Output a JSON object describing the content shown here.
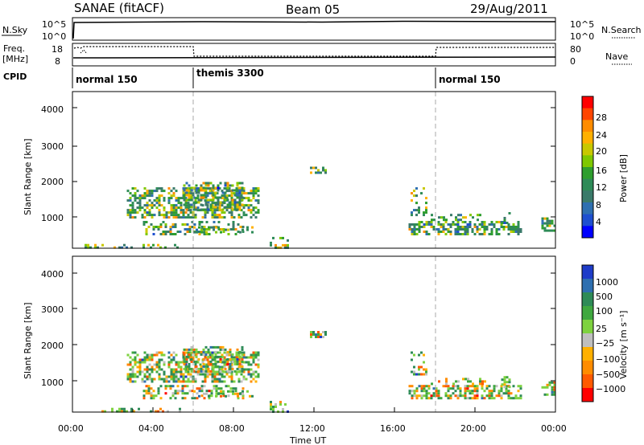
{
  "header": {
    "title": "SANAE (fitACF)",
    "beam": "Beam 05",
    "date": "29/Aug/2011"
  },
  "sky_panel": {
    "left_label": "N.Sky",
    "left_ticks": [
      "10^5",
      "10^0"
    ],
    "right_label": "N.Search",
    "right_ticks": [
      "10^5",
      "10^0"
    ]
  },
  "freq_panel": {
    "left_label_1": "Freq.",
    "left_label_2": "[MHz]",
    "left_ticks": [
      "18",
      "8"
    ],
    "right_label": "Nave",
    "right_ticks": [
      "80",
      "0"
    ]
  },
  "cpid_panel": {
    "label": "CPID",
    "modes": [
      "normal 150",
      "themis 3300",
      "normal 150"
    ]
  },
  "power_colorbar": {
    "label": "Power [dB]",
    "ticks": [
      "28",
      "24",
      "20",
      "16",
      "12",
      "8",
      "4"
    ],
    "colors": [
      "#ff0000",
      "#ff4500",
      "#ff8c00",
      "#ffb000",
      "#c8c800",
      "#7ec800",
      "#2e9e2e",
      "#2e8b57",
      "#3a7a6a",
      "#2e6fb0",
      "#1e4fd0",
      "#0000ff"
    ]
  },
  "velocity_colorbar": {
    "label": "Velocity  [m s⁻¹]",
    "ticks": [
      "1000",
      "500",
      "100",
      "25",
      "−25",
      "−100",
      "−500",
      "−1000"
    ],
    "colors": [
      "#1e3cc8",
      "#2e6fb0",
      "#2e8b57",
      "#3fa83f",
      "#7ed23f",
      "#bfbfbf",
      "#ffb000",
      "#ff8c00",
      "#ff5a00",
      "#ff0000"
    ]
  },
  "axes": {
    "ylabel": "Slant Range [km]",
    "yticks": [
      "4000",
      "3000",
      "2000",
      "1000"
    ],
    "xticks": [
      "00:00",
      "04:00",
      "08:00",
      "12:00",
      "16:00",
      "20:00",
      "00:00"
    ],
    "xlabel": "Time UT"
  },
  "chart_data": {
    "type": "heatmap",
    "x_range_hours": [
      0,
      24
    ],
    "y_range_km": [
      180,
      4600
    ],
    "mode_changes_hours": [
      6,
      18
    ],
    "scatter_regions": [
      {
        "x0": 2.7,
        "x1": 9.3,
        "y0": 1050,
        "y1": 1900,
        "density": 0.55
      },
      {
        "x0": 5.5,
        "x1": 8.5,
        "y0": 1300,
        "y1": 2050,
        "density": 0.45
      },
      {
        "x0": 3.5,
        "x1": 8.5,
        "y0": 600,
        "y1": 950,
        "density": 0.35
      },
      {
        "x0": 6.0,
        "x1": 9.0,
        "y0": 600,
        "y1": 800,
        "density": 0.3
      },
      {
        "x0": 0.6,
        "x1": 5.5,
        "y0": 200,
        "y1": 300,
        "density": 0.35
      },
      {
        "x0": 9.8,
        "x1": 10.7,
        "y0": 200,
        "y1": 500,
        "density": 0.4
      },
      {
        "x0": 11.8,
        "x1": 12.6,
        "y0": 2300,
        "y1": 2480,
        "density": 0.6
      },
      {
        "x0": 16.7,
        "x1": 22.3,
        "y0": 550,
        "y1": 950,
        "density": 0.6
      },
      {
        "x0": 17.8,
        "x1": 20.5,
        "y0": 950,
        "y1": 1150,
        "density": 0.3
      },
      {
        "x0": 16.8,
        "x1": 17.6,
        "y0": 1150,
        "y1": 1900,
        "density": 0.3
      },
      {
        "x0": 23.3,
        "x1": 24.0,
        "y0": 650,
        "y1": 1050,
        "density": 0.5
      },
      {
        "x0": 21.3,
        "x1": 21.7,
        "y0": 900,
        "y1": 1200,
        "density": 0.4
      }
    ],
    "power_weights": [
      0,
      0,
      0.5,
      1,
      1.3,
      1.6,
      1.5,
      2.6,
      2.6,
      0.9,
      0.2,
      0.05
    ],
    "velocity_weights": [
      0.05,
      0.2,
      1.6,
      1.2,
      1.3,
      0.6,
      0.6,
      0.6,
      0.5,
      0.1
    ]
  }
}
